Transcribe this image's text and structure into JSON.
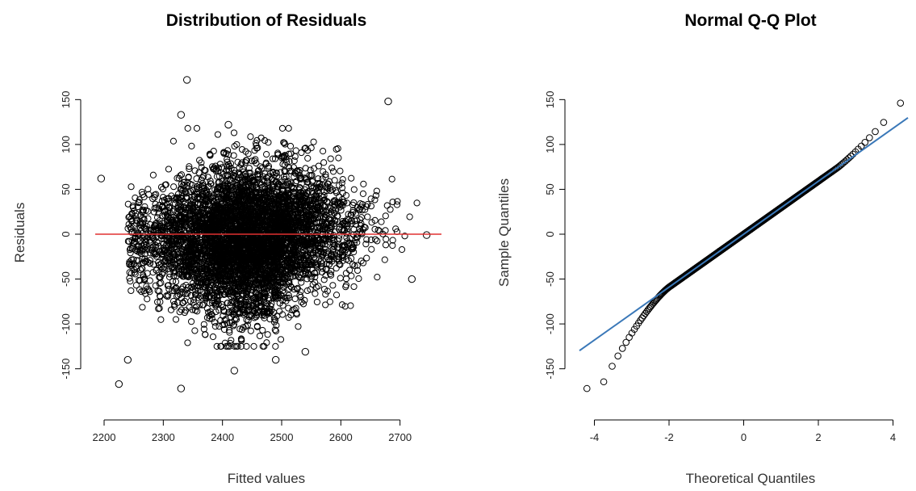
{
  "chart_data": [
    {
      "type": "scatter",
      "title": "Distribution of Residuals",
      "xlabel": "Fitted values",
      "ylabel": "Residuals",
      "x_ticks": [
        2200,
        2300,
        2400,
        2500,
        2600,
        2700
      ],
      "y_ticks": [
        -150,
        -100,
        -50,
        0,
        50,
        100,
        150
      ],
      "xlim": [
        2185,
        2770
      ],
      "ylim": [
        -180,
        180
      ],
      "grid": false,
      "reference_line": {
        "type": "horizontal",
        "y": 0,
        "color": "#e03030"
      },
      "point_style": "open circle",
      "point_color": "#000000",
      "cloud": {
        "description_values": "dense cloud of residuals vs fitted values",
        "fitted_range": [
          2200,
          2750
        ],
        "fitted_center": 2440,
        "residual_spread": 45
      },
      "outliers": [
        {
          "x": 2340,
          "y": 172
        },
        {
          "x": 2680,
          "y": 148
        },
        {
          "x": 2330,
          "y": 133
        },
        {
          "x": 2410,
          "y": 122
        },
        {
          "x": 2225,
          "y": -167
        },
        {
          "x": 2330,
          "y": -172
        },
        {
          "x": 2420,
          "y": -152
        },
        {
          "x": 2195,
          "y": 62
        },
        {
          "x": 2745,
          "y": -1
        },
        {
          "x": 2490,
          "y": -140
        },
        {
          "x": 2540,
          "y": -131
        },
        {
          "x": 2240,
          "y": -140
        },
        {
          "x": 2720,
          "y": -50
        }
      ]
    },
    {
      "type": "scatter",
      "title": "Normal Q-Q Plot",
      "xlabel": "Theoretical Quantiles",
      "ylabel": "Sample Quantiles",
      "x_ticks": [
        -4,
        -2,
        0,
        2,
        4
      ],
      "y_ticks": [
        -150,
        -100,
        -50,
        0,
        50,
        100,
        150
      ],
      "xlim": [
        -4.4,
        4.4
      ],
      "ylim": [
        -180,
        180
      ],
      "grid": false,
      "reference_line": {
        "type": "qqline",
        "slope": 29.5,
        "intercept": 0,
        "color": "#3a78b8"
      },
      "point_style": "open circle",
      "point_color": "#000000",
      "points_summary": {
        "min_sample": -172,
        "max_sample": 172,
        "theoretical_range": [
          -4.2,
          4.2
        ]
      }
    }
  ]
}
